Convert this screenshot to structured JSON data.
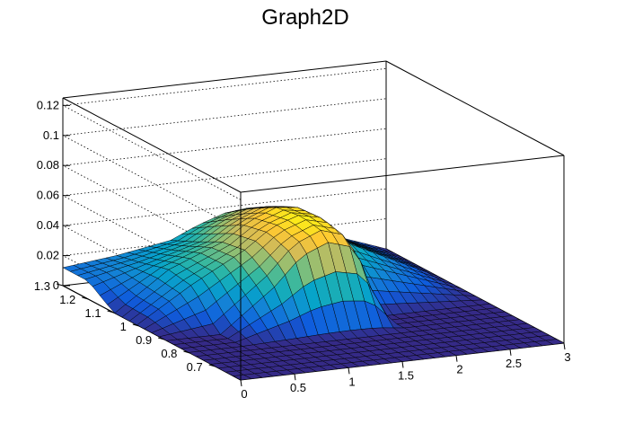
{
  "title": "Graph2D",
  "chart_data": {
    "type": "surface",
    "title": "Graph2D",
    "x_axis": {
      "range": [
        0,
        3
      ],
      "ticks": [
        0,
        0.5,
        1,
        1.5,
        2,
        2.5,
        3
      ],
      "tick_labels": [
        "0",
        "0.5",
        "1",
        "1.5",
        "2",
        "2.5",
        "3"
      ]
    },
    "y_axis": {
      "range": [
        0.6,
        1.3
      ],
      "ticks": [
        0.7,
        0.8,
        0.9,
        1.0,
        1.1,
        1.2,
        1.3
      ],
      "tick_labels": [
        "0.7",
        "0.8",
        "0.9",
        "1",
        "1.1",
        "1.2",
        "1.3"
      ]
    },
    "z_axis": {
      "range": [
        0,
        0.125
      ],
      "ticks": [
        0,
        0.02,
        0.04,
        0.06,
        0.08,
        0.1,
        0.12
      ],
      "tick_labels": [
        "0",
        "0.02",
        "0.04",
        "0.06",
        "0.08",
        "0.1",
        "0.12"
      ]
    },
    "grid": true,
    "colormap": [
      "#352a87",
      "#0f5cdd",
      "#1481d6",
      "#06a4ca",
      "#2eb7a4",
      "#87bf77",
      "#d1bb59",
      "#fec832",
      "#f9fb0e"
    ],
    "surface": {
      "x": [
        0,
        0.5,
        1.0,
        1.25,
        1.5,
        1.75,
        2.0,
        3.0
      ],
      "y": [
        0.6,
        0.7,
        0.8,
        0.9,
        1.0,
        1.1,
        1.2,
        1.3
      ],
      "z": [
        [
          0.0,
          0.0,
          0.0,
          0.0,
          0.0,
          0.0,
          0.0,
          0.0
        ],
        [
          0.0,
          0.0,
          0.0,
          0.0,
          0.0,
          0.0,
          0.0,
          0.0
        ],
        [
          0.0,
          0.0,
          0.0,
          0.0,
          0.0,
          0.0,
          0.0,
          0.0
        ],
        [
          0.0,
          0.0,
          0.03,
          0.05,
          0.058,
          0.052,
          0.0,
          0.0
        ],
        [
          0.0,
          0.022,
          0.042,
          0.055,
          0.061,
          0.057,
          0.024,
          0.0
        ],
        [
          0.0,
          0.025,
          0.039,
          0.051,
          0.058,
          0.056,
          0.035,
          0.0
        ],
        [
          0.012,
          0.02,
          0.03,
          0.041,
          0.048,
          0.048,
          0.032,
          0.0
        ],
        [
          0.012,
          0.016,
          0.022,
          0.03,
          0.036,
          0.038,
          0.026,
          0.0
        ]
      ]
    }
  }
}
